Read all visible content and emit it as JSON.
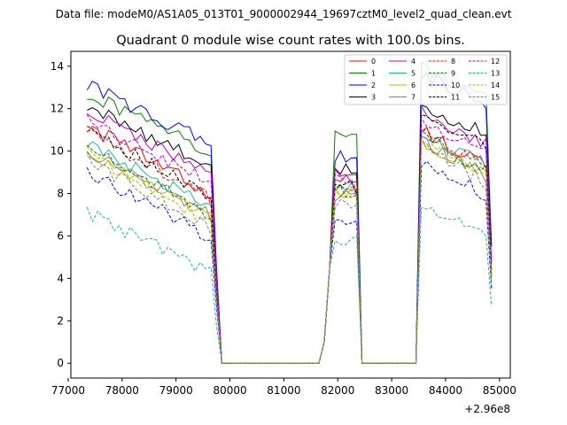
{
  "chart_data": {
    "type": "line",
    "suptitle": "Data file: modeM0/AS1A05_013T01_9000002944_19697cztM0_level2_quad_clean.evt",
    "title": "Quadrant 0 module wise count rates with 100.0s bins.",
    "xlabel": "",
    "ylabel": "",
    "x_offset_label": "+2.96e8",
    "xlim": [
      77050,
      85200
    ],
    "ylim": [
      -0.7,
      14.7
    ],
    "xticks": [
      77000,
      78000,
      79000,
      80000,
      81000,
      82000,
      83000,
      84000,
      85000
    ],
    "yticks": [
      0,
      2,
      4,
      6,
      8,
      10,
      12,
      14
    ],
    "xtick_labels": [
      "77000",
      "78000",
      "79000",
      "80000",
      "81000",
      "82000",
      "83000",
      "84000",
      "85000"
    ],
    "ytick_labels": [
      "0",
      "2",
      "4",
      "6",
      "8",
      "10",
      "12",
      "14"
    ],
    "legend_position": "top-right",
    "segments": [
      {
        "start": 77350,
        "end": 79750
      },
      {
        "start": 81750,
        "end": 82350
      },
      {
        "start": 83550,
        "end": 84850
      }
    ],
    "series": [
      {
        "name": "0",
        "color": "#ff0000",
        "dash": "solid",
        "levels": [
          11.2,
          8.8,
          11.0
        ],
        "slope": 0.14
      },
      {
        "name": "1",
        "color": "#008000",
        "dash": "solid",
        "levels": [
          12.7,
          10.8,
          14.0
        ],
        "slope": 0.12
      },
      {
        "name": "2",
        "color": "#0000ff",
        "dash": "solid",
        "levels": [
          13.1,
          9.8,
          13.7
        ],
        "slope": 0.12
      },
      {
        "name": "3",
        "color": "#000000",
        "dash": "solid",
        "levels": [
          12.1,
          9.2,
          12.2
        ],
        "slope": 0.12
      },
      {
        "name": "4",
        "color": "#c000c0",
        "dash": "solid",
        "levels": [
          11.9,
          8.9,
          11.9
        ],
        "slope": 0.13
      },
      {
        "name": "5",
        "color": "#20b2aa",
        "dash": "solid",
        "levels": [
          10.3,
          8.3,
          10.9
        ],
        "slope": 0.13
      },
      {
        "name": "6",
        "color": "#b8b800",
        "dash": "solid",
        "levels": [
          9.8,
          8.2,
          10.5
        ],
        "slope": 0.13
      },
      {
        "name": "7",
        "color": "#808080",
        "dash": "solid",
        "levels": [
          10.0,
          8.0,
          10.4
        ],
        "slope": 0.13
      },
      {
        "name": "8",
        "color": "#ff0000",
        "dash": "dashed",
        "levels": [
          10.9,
          8.3,
          11.0
        ],
        "slope": 0.14
      },
      {
        "name": "9",
        "color": "#008000",
        "dash": "dashed",
        "levels": [
          10.2,
          8.1,
          10.8
        ],
        "slope": 0.14
      },
      {
        "name": "10",
        "color": "#0000ff",
        "dash": "dashed",
        "levels": [
          9.1,
          7.0,
          9.6
        ],
        "slope": 0.14
      },
      {
        "name": "11",
        "color": "#000000",
        "dash": "dashed",
        "levels": [
          11.0,
          8.4,
          11.8
        ],
        "slope": 0.14
      },
      {
        "name": "12",
        "color": "#c000c0",
        "dash": "dashed",
        "levels": [
          11.5,
          8.6,
          11.4
        ],
        "slope": 0.13
      },
      {
        "name": "13",
        "color": "#20b2aa",
        "dash": "dashed",
        "levels": [
          7.1,
          5.9,
          7.6
        ],
        "slope": 0.12
      },
      {
        "name": "14",
        "color": "#b8b800",
        "dash": "dashed",
        "levels": [
          9.9,
          8.0,
          10.6
        ],
        "slope": 0.14
      },
      {
        "name": "15",
        "color": "#808080",
        "dash": "dashed",
        "levels": [
          9.6,
          7.6,
          10.2
        ],
        "slope": 0.14
      }
    ]
  }
}
